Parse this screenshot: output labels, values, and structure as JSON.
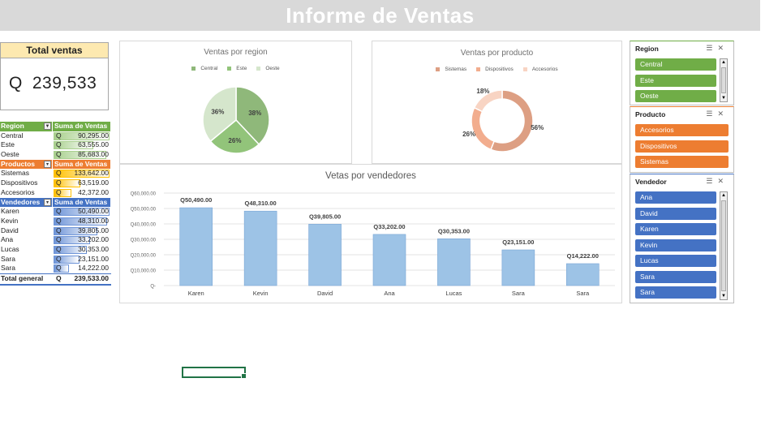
{
  "title": "Informe de Ventas",
  "total_card": {
    "label": "Total ventas",
    "currency": "Q",
    "value": "239,533"
  },
  "colors": {
    "region": "#70ad47",
    "producto": "#ed7d31",
    "vendedor": "#4472c4",
    "banner": "#d9d9d9"
  },
  "pivot": {
    "sections": [
      {
        "header": "Region",
        "value_header": "Suma de Ventas",
        "color": "#70ad47",
        "bar_color": "#a9d08e",
        "filtered": false,
        "rows": [
          {
            "label": "Central",
            "currency": "Q",
            "value": "90,295.00",
            "fraction": 1.0
          },
          {
            "label": "Este",
            "currency": "Q",
            "value": "63,555.00",
            "fraction": 0.704
          },
          {
            "label": "Oeste",
            "currency": "Q",
            "value": "85,683.00",
            "fraction": 0.949
          }
        ]
      },
      {
        "header": "Productos",
        "value_header": "Suma de Ventas",
        "color": "#ed7d31",
        "bar_color": "#ffc000",
        "filtered": true,
        "rows": [
          {
            "label": "Sistemas",
            "currency": "Q",
            "value": "133,642.00",
            "fraction": 1.0
          },
          {
            "label": "Dispositivos",
            "currency": "Q",
            "value": "63,519.00",
            "fraction": 0.475
          },
          {
            "label": "Accesorios",
            "currency": "Q",
            "value": "42,372.00",
            "fraction": 0.317
          }
        ]
      },
      {
        "header": "Vendedores",
        "value_header": "Suma de Ventas",
        "color": "#4472c4",
        "bar_color": "#6f95d8",
        "filtered": true,
        "rows": [
          {
            "label": "Karen",
            "currency": "Q",
            "value": "50,490.00",
            "fraction": 1.0
          },
          {
            "label": "Kevin",
            "currency": "Q",
            "value": "48,310.00",
            "fraction": 0.957
          },
          {
            "label": "David",
            "currency": "Q",
            "value": "39,805.00",
            "fraction": 0.788
          },
          {
            "label": "Ana",
            "currency": "Q",
            "value": "33,202.00",
            "fraction": 0.658
          },
          {
            "label": "Lucas",
            "currency": "Q",
            "value": "30,353.00",
            "fraction": 0.601
          },
          {
            "label": "Sara",
            "currency": "Q",
            "value": "23,151.00",
            "fraction": 0.459
          },
          {
            "label": "Sara",
            "currency": "Q",
            "value": "14,222.00",
            "fraction": 0.282
          }
        ]
      }
    ],
    "total": {
      "label": "Total general",
      "currency": "Q",
      "value": "239,533.00"
    }
  },
  "chart_data": [
    {
      "type": "pie",
      "title": "Ventas por region",
      "categories": [
        "Central",
        "Este",
        "Oeste"
      ],
      "values": [
        38,
        26,
        36
      ],
      "labels": [
        "38%",
        "26%",
        "36%"
      ],
      "colors": [
        "#8fb87a",
        "#92c47a",
        "#d5e6cc"
      ],
      "legend": "top"
    },
    {
      "type": "pie",
      "title": "Ventas por producto",
      "style": "doughnut",
      "categories": [
        "Sistemas",
        "Dispositivos",
        "Accesorios"
      ],
      "values": [
        56,
        26,
        18
      ],
      "labels": [
        "56%",
        "26%",
        "18%"
      ],
      "colors": [
        "#dd9f83",
        "#f2ad8e",
        "#f8d4c3"
      ],
      "legend": "top"
    },
    {
      "type": "bar",
      "title": "Vetas por vendedores",
      "categories": [
        "Karen",
        "Kevin",
        "David",
        "Ana",
        "Lucas",
        "Sara",
        "Sara"
      ],
      "values": [
        50490,
        48310,
        39805,
        33202,
        30353,
        23151,
        14222
      ],
      "data_labels": [
        "Q50,490.00",
        "Q48,310.00",
        "Q39,805.00",
        "Q33,202.00",
        "Q30,353.00",
        "Q23,151.00",
        "Q14,222.00"
      ],
      "ylim": [
        0,
        60000
      ],
      "y_ticks": [
        0,
        10000,
        20000,
        30000,
        40000,
        50000,
        60000
      ],
      "y_tick_labels": [
        "Q-",
        "Q10,000.00",
        "Q20,000.00",
        "Q30,000.00",
        "Q40,000.00",
        "Q50,000.00",
        "Q60,000.00"
      ],
      "grid": true,
      "color": "#9dc3e6"
    }
  ],
  "slicers": [
    {
      "title": "Region",
      "color": "#70ad47",
      "items": [
        "Central",
        "Este",
        "Oeste"
      ]
    },
    {
      "title": "Producto",
      "color": "#ed7d31",
      "items": [
        "Accesorios",
        "Dispositivos",
        "Sistemas"
      ]
    },
    {
      "title": "Vendedor",
      "color": "#4472c4",
      "items": [
        "Ana",
        "David",
        "Karen",
        "Kevin",
        "Lucas",
        "Sara",
        "Sara"
      ]
    }
  ]
}
